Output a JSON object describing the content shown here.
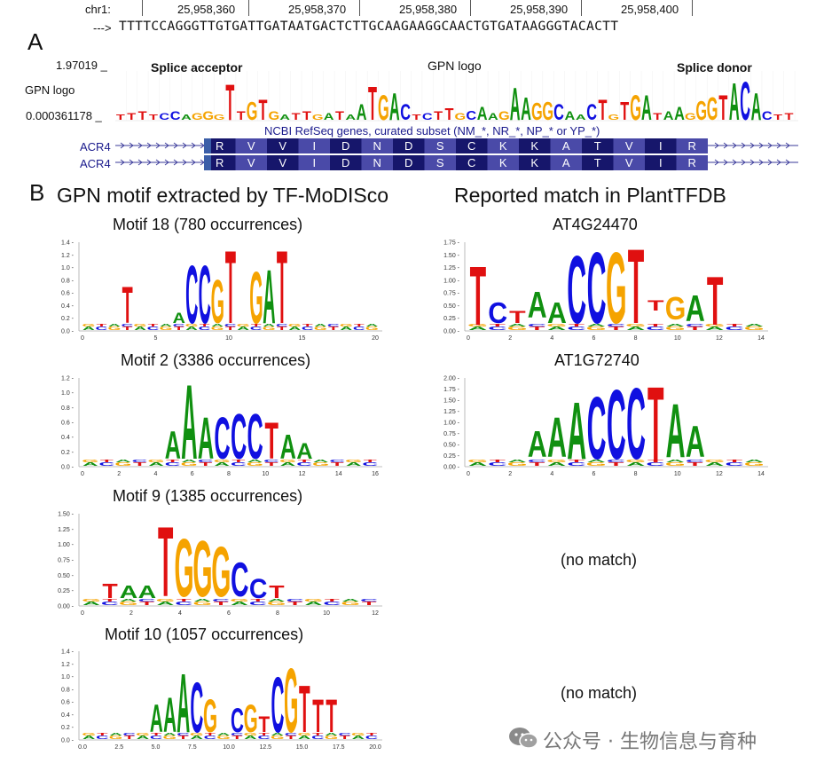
{
  "panel_a": {
    "letter": "A",
    "chrom_label": "chr1:",
    "coords": [
      "25,958,360",
      "25,958,370",
      "25,958,380",
      "25,958,390",
      "25,958,400"
    ],
    "arrow": "--->",
    "sequence": "TTTTCCAGGGTTGTGATTGATAATGACTCTTGCAAGAAGGCAACTGTGATAAGGGTACACTT",
    "max_label": "1.97019 _",
    "min_label": "0.000361178 _",
    "track_label": "GPN logo",
    "splice_acceptor": "Splice acceptor",
    "center_label": "GPN logo",
    "splice_donor": "Splice donor",
    "refseq_label": "NCBI RefSeq genes, curated subset (NM_*, NR_*, NP_* or YP_*)",
    "gene_rows": [
      "ACR4",
      "ACR4"
    ],
    "amino_acids": [
      "R",
      "V",
      "V",
      "I",
      "D",
      "N",
      "D",
      "S",
      "C",
      "K",
      "K",
      "A",
      "T",
      "V",
      "I",
      "R"
    ],
    "logo_letters": [
      "A",
      "G",
      "T",
      "T",
      "T",
      "T",
      "G",
      "A",
      "C",
      "T",
      "G",
      "A",
      "A",
      "G",
      "T",
      "G",
      "C",
      "A",
      "A",
      "G",
      "G",
      "C",
      "A",
      "C",
      "T",
      "G",
      "T",
      "G",
      "G",
      "T",
      "A"
    ]
  },
  "panel_b": {
    "letter": "B",
    "left_title": "GPN motif extracted by TF-MoDISco",
    "right_title": "Reported match in PlantTFDB",
    "motifs": [
      {
        "title": "Motif 18 (780 occurrences)",
        "letters": [
          "T",
          "A",
          "C",
          "C",
          "G",
          "T",
          "G",
          "A",
          "T"
        ],
        "yticks": [
          "1.4",
          "1.2",
          "1.0",
          "0.8",
          "0.6",
          "0.4",
          "0.2",
          "0.0"
        ],
        "xticks": [
          "0",
          "5",
          "10",
          "15",
          "20"
        ]
      },
      {
        "title": "Motif 2 (3386 occurrences)",
        "letters": [
          "A",
          "A",
          "A",
          "C",
          "C",
          "C",
          "T",
          "A",
          "A"
        ],
        "yticks": [
          "1.2",
          "1.0",
          "0.8",
          "0.6",
          "0.4",
          "0.2",
          "0.0"
        ],
        "xticks": [
          "0",
          "2",
          "4",
          "6",
          "8",
          "10",
          "12",
          "14",
          "16"
        ]
      },
      {
        "title": "Motif 9 (1385 occurrences)",
        "letters": [
          "T",
          "A",
          "A",
          "T",
          "G",
          "G",
          "G",
          "C",
          "C",
          "T"
        ],
        "yticks": [
          "1.50",
          "1.25",
          "1.00",
          "0.75",
          "0.50",
          "0.25",
          "0.00"
        ],
        "xticks": [
          "0",
          "2",
          "4",
          "6",
          "8",
          "10",
          "12"
        ]
      },
      {
        "title": "Motif 10 (1057 occurrences)",
        "letters": [
          "A",
          "A",
          "A",
          "C",
          "G",
          "C",
          "G",
          "T",
          "C",
          "G",
          "T",
          "T",
          "T"
        ],
        "yticks": [
          "1.4",
          "1.2",
          "1.0",
          "0.8",
          "0.6",
          "0.4",
          "0.2",
          "0.0"
        ],
        "xticks": [
          "0.0",
          "2.5",
          "5.0",
          "7.5",
          "10.0",
          "12.5",
          "15.0",
          "17.5",
          "20.0"
        ]
      }
    ],
    "matches": [
      {
        "title": "AT4G24470",
        "letters": [
          "T",
          "C",
          "T",
          "A",
          "A",
          "C",
          "C",
          "G",
          "T",
          "T",
          "G",
          "A",
          "T"
        ],
        "yticks": [
          "1.75",
          "1.50",
          "1.25",
          "1.00",
          "0.75",
          "0.50",
          "0.25",
          "0.00"
        ],
        "xticks": [
          "0",
          "2",
          "4",
          "6",
          "8",
          "10",
          "12",
          "14"
        ]
      },
      {
        "title": "AT1G72740",
        "letters": [
          "A",
          "A",
          "A",
          "C",
          "C",
          "C",
          "T",
          "A",
          "A"
        ],
        "yticks": [
          "2.00",
          "1.75",
          "1.50",
          "1.25",
          "1.00",
          "0.75",
          "0.50",
          "0.25",
          "0.00"
        ],
        "xticks": [
          "0",
          "2",
          "4",
          "6",
          "8",
          "10",
          "12",
          "14"
        ]
      },
      {
        "title": "(no match)"
      },
      {
        "title": "(no match)"
      }
    ]
  },
  "watermark": "公众号 · 生物信息与育种",
  "colors": {
    "A": "#109010",
    "C": "#1010e0",
    "G": "#f5a300",
    "T": "#e01010",
    "aa_dark": "#16166b",
    "aa_light": "#4a4aa8"
  }
}
